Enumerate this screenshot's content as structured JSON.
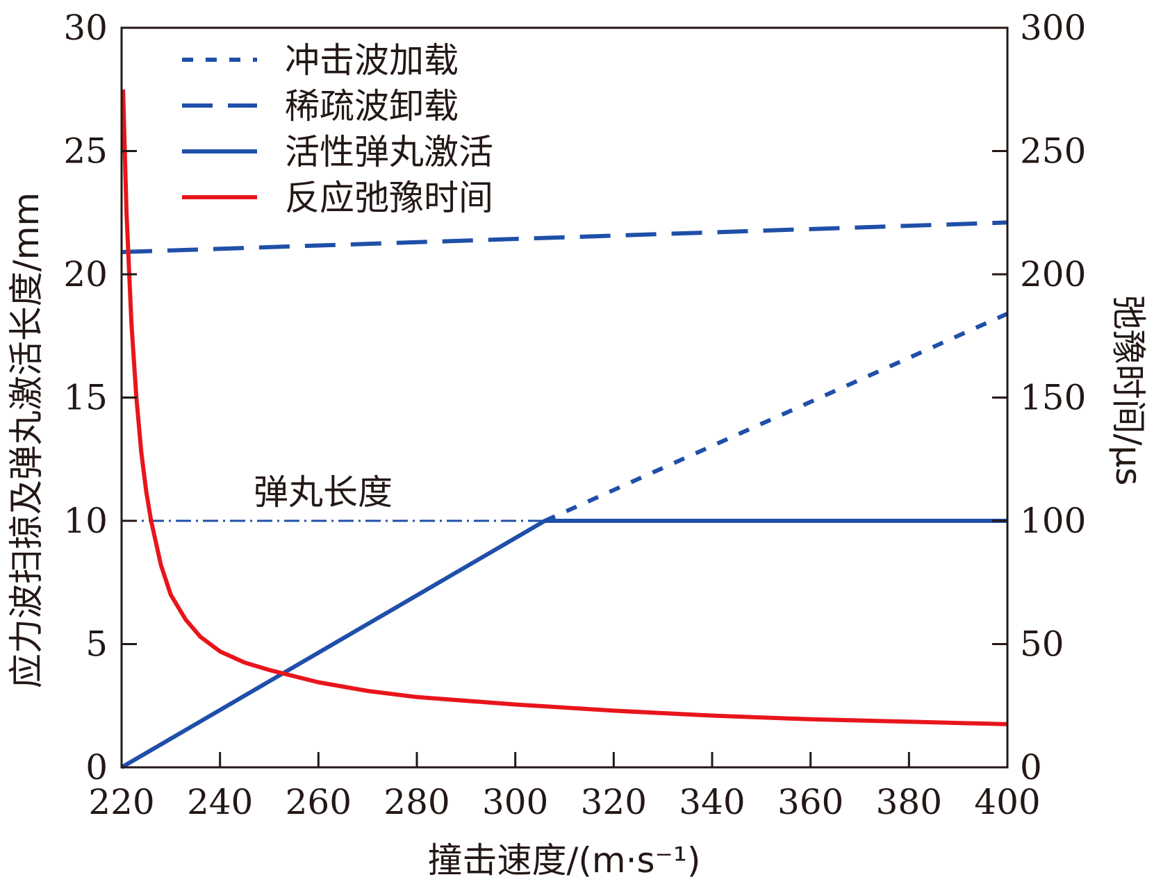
{
  "chart_data": {
    "type": "line",
    "xlabel": "撞击速度/(m·s⁻¹)",
    "ylabel_left": "应力波扫掠及弹丸激活长度/mm",
    "ylabel_right": "弛豫时间/μs",
    "xlim": [
      220,
      400
    ],
    "ylim_left": [
      0,
      30
    ],
    "ylim_right": [
      0,
      300
    ],
    "x_ticks": [
      "220",
      "240",
      "260",
      "280",
      "300",
      "320",
      "340",
      "360",
      "380",
      "400"
    ],
    "y_ticks_left": [
      "0",
      "5",
      "10",
      "15",
      "20",
      "25",
      "30"
    ],
    "y_ticks_right": [
      "0",
      "50",
      "100",
      "150",
      "200",
      "250",
      "300"
    ],
    "grid": false,
    "legend_position": "top-left",
    "legend": [
      {
        "label": "冲击波加载",
        "style": "dotted",
        "color": "#1f4fa8"
      },
      {
        "label": "稀疏波卸载",
        "style": "dashed",
        "color": "#1f4fa8"
      },
      {
        "label": "活性弹丸激活",
        "style": "solid",
        "color": "#1f4fa8"
      },
      {
        "label": "反应弛豫时间",
        "style": "solid",
        "color": "#e8151b"
      }
    ],
    "annotation": {
      "text": "弹丸长度",
      "y": 10
    },
    "series": [
      {
        "name": "冲击波加载",
        "axis": "left",
        "style": "dotted",
        "color": "#1f4fa8",
        "x": [
          306,
          400
        ],
        "y": [
          10,
          18.4
        ]
      },
      {
        "name": "稀疏波卸载",
        "axis": "left",
        "style": "dashed",
        "color": "#1f4fa8",
        "x": [
          220,
          400
        ],
        "y": [
          20.9,
          22.1
        ]
      },
      {
        "name": "活性弹丸激活",
        "axis": "left",
        "style": "solid",
        "color": "#1f4fa8",
        "x": [
          220,
          306,
          400
        ],
        "y": [
          0,
          10,
          10
        ]
      },
      {
        "name": "反应弛豫时间",
        "axis": "right",
        "style": "solid",
        "color": "#e8151b",
        "x": [
          220.3,
          221,
          222,
          223,
          224,
          225,
          226,
          228,
          230,
          233,
          236,
          240,
          245,
          250,
          260,
          270,
          280,
          300,
          320,
          340,
          360,
          380,
          400
        ],
        "y": [
          275,
          225,
          180,
          150,
          128,
          112,
          100,
          82,
          70,
          60,
          53,
          47,
          42.5,
          39.5,
          34.5,
          31,
          28.5,
          25.5,
          23,
          21,
          19.5,
          18.5,
          17.5
        ]
      }
    ],
    "reference_line": {
      "name": "弹丸长度",
      "axis": "left",
      "style": "dash-dot",
      "color": "#1f4fa8",
      "x": [
        220,
        306
      ],
      "y": [
        10,
        10
      ]
    }
  }
}
